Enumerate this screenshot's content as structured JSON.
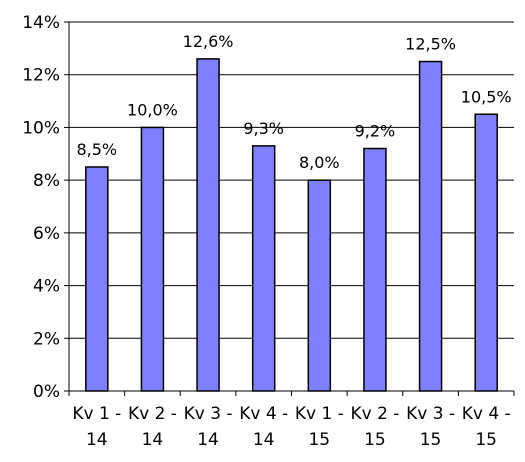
{
  "chart_data": {
    "type": "bar",
    "title": "",
    "xlabel": "",
    "ylabel": "",
    "categories": [
      [
        "Kv 1 -",
        "14"
      ],
      [
        "Kv 2 -",
        "14"
      ],
      [
        "Kv 3 -",
        "14"
      ],
      [
        "Kv 4 -",
        "14"
      ],
      [
        "Kv 1 -",
        "15"
      ],
      [
        "Kv 2 -",
        "15"
      ],
      [
        "Kv 3 -",
        "15"
      ],
      [
        "Kv 4 -",
        "15"
      ]
    ],
    "values": [
      8.5,
      10.0,
      12.6,
      9.3,
      8.0,
      9.2,
      12.5,
      10.5
    ],
    "data_labels": [
      "8,5%",
      "10,0%",
      "12,6%",
      "9,3%",
      "8,0%",
      "9,2%",
      "12,5%",
      "10,5%"
    ],
    "ylim": [
      0,
      14
    ],
    "y_ticks": [
      0,
      2,
      4,
      6,
      8,
      10,
      12,
      14
    ],
    "y_tick_labels": [
      "0%",
      "2%",
      "4%",
      "6%",
      "8%",
      "10%",
      "12%",
      "14%"
    ],
    "grid": true,
    "legend": "none",
    "bar_color": "#8080ff",
    "bar_edge_color": "#000000"
  }
}
